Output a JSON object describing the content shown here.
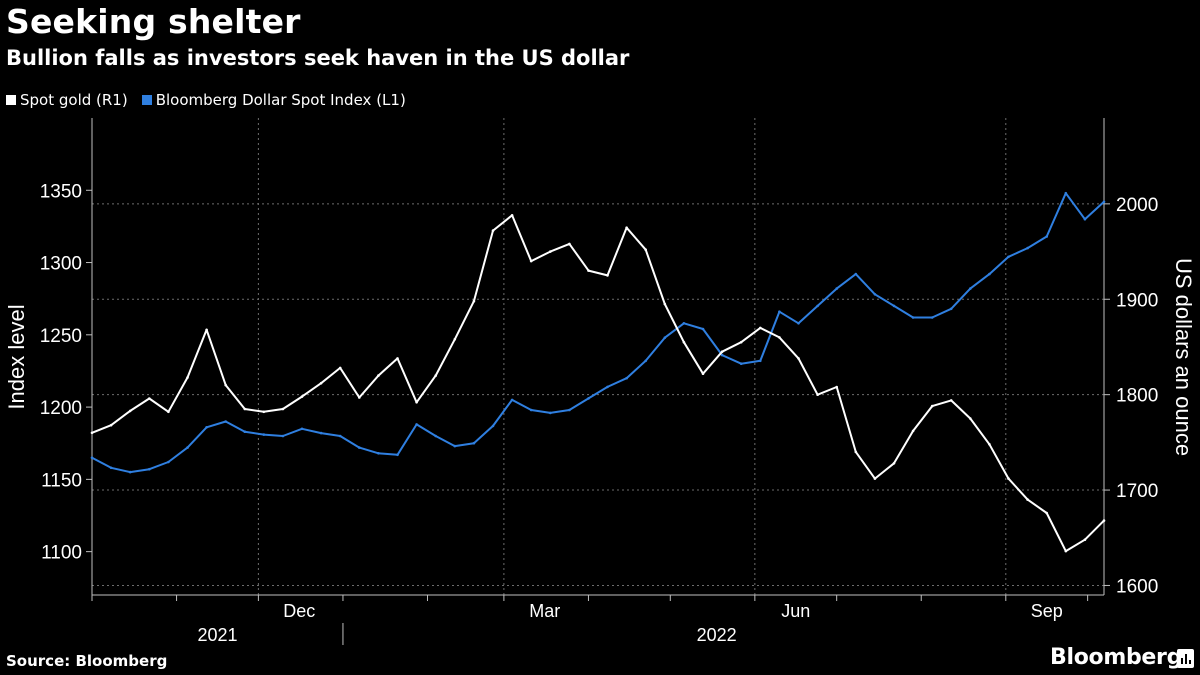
{
  "title": "Seeking shelter",
  "subtitle": "Bullion falls as investors seek haven in the US dollar",
  "legend": [
    {
      "label": "Spot gold (R1)",
      "color": "#ffffff"
    },
    {
      "label": "Bloomberg Dollar Spot Index (L1)",
      "color": "#2f7fe0"
    }
  ],
  "footer": {
    "source": "Source: Bloomberg",
    "brand": "Bloomberg"
  },
  "chart_data": {
    "type": "line",
    "ylabel_left": "Index level",
    "ylabel_right": "US dollars an ounce",
    "ylim_left": [
      1070,
      1400
    ],
    "ylim_right": [
      1590,
      2090
    ],
    "yticks_left": [
      1100,
      1150,
      1200,
      1250,
      1300,
      1350
    ],
    "yticks_right": [
      1600,
      1700,
      1800,
      1900,
      2000
    ],
    "x_month_labels": [
      "Dec",
      "Mar",
      "Jun",
      "Sep"
    ],
    "x_year_labels": [
      "2021",
      "2022"
    ],
    "grid": true,
    "legend_position": "top-left",
    "series": [
      {
        "name": "Bloomberg Dollar Spot Index (L1)",
        "axis": "left",
        "color": "#2f7fe0",
        "x": [
          "2021-10-01",
          "2021-10-08",
          "2021-10-15",
          "2021-10-22",
          "2021-10-29",
          "2021-11-05",
          "2021-11-12",
          "2021-11-19",
          "2021-11-26",
          "2021-12-03",
          "2021-12-10",
          "2021-12-17",
          "2021-12-24",
          "2021-12-31",
          "2022-01-07",
          "2022-01-14",
          "2022-01-21",
          "2022-01-28",
          "2022-02-04",
          "2022-02-11",
          "2022-02-18",
          "2022-02-25",
          "2022-03-04",
          "2022-03-11",
          "2022-03-18",
          "2022-03-25",
          "2022-04-01",
          "2022-04-08",
          "2022-04-15",
          "2022-04-22",
          "2022-04-29",
          "2022-05-06",
          "2022-05-13",
          "2022-05-20",
          "2022-05-27",
          "2022-06-03",
          "2022-06-10",
          "2022-06-17",
          "2022-06-24",
          "2022-07-01",
          "2022-07-08",
          "2022-07-15",
          "2022-07-22",
          "2022-07-29",
          "2022-08-05",
          "2022-08-12",
          "2022-08-19",
          "2022-08-26",
          "2022-09-02",
          "2022-09-09",
          "2022-09-16",
          "2022-09-23",
          "2022-09-30",
          "2022-10-07"
        ],
        "values": [
          1165,
          1158,
          1155,
          1157,
          1162,
          1172,
          1186,
          1190,
          1183,
          1181,
          1180,
          1185,
          1182,
          1180,
          1172,
          1168,
          1167,
          1188,
          1180,
          1173,
          1175,
          1187,
          1205,
          1198,
          1196,
          1198,
          1206,
          1214,
          1220,
          1232,
          1248,
          1258,
          1254,
          1236,
          1230,
          1232,
          1266,
          1258,
          1270,
          1282,
          1292,
          1278,
          1270,
          1262,
          1262,
          1268,
          1282,
          1292,
          1304,
          1310,
          1318,
          1348,
          1330,
          1342
        ]
      },
      {
        "name": "Spot gold (R1)",
        "axis": "right",
        "color": "#ffffff",
        "x": [
          "2021-10-01",
          "2021-10-08",
          "2021-10-15",
          "2021-10-22",
          "2021-10-29",
          "2021-11-05",
          "2021-11-12",
          "2021-11-19",
          "2021-11-26",
          "2021-12-03",
          "2021-12-10",
          "2021-12-17",
          "2021-12-24",
          "2021-12-31",
          "2022-01-07",
          "2022-01-14",
          "2022-01-21",
          "2022-01-28",
          "2022-02-04",
          "2022-02-11",
          "2022-02-18",
          "2022-02-25",
          "2022-03-04",
          "2022-03-11",
          "2022-03-18",
          "2022-03-25",
          "2022-04-01",
          "2022-04-08",
          "2022-04-15",
          "2022-04-22",
          "2022-04-29",
          "2022-05-06",
          "2022-05-13",
          "2022-05-20",
          "2022-05-27",
          "2022-06-03",
          "2022-06-10",
          "2022-06-17",
          "2022-06-24",
          "2022-07-01",
          "2022-07-08",
          "2022-07-15",
          "2022-07-22",
          "2022-07-29",
          "2022-08-05",
          "2022-08-12",
          "2022-08-19",
          "2022-08-26",
          "2022-09-02",
          "2022-09-09",
          "2022-09-16",
          "2022-09-23",
          "2022-09-30",
          "2022-10-07"
        ],
        "values": [
          1760,
          1768,
          1783,
          1796,
          1782,
          1818,
          1868,
          1810,
          1785,
          1782,
          1785,
          1798,
          1812,
          1828,
          1797,
          1820,
          1838,
          1792,
          1820,
          1858,
          1898,
          1972,
          1988,
          1940,
          1950,
          1958,
          1930,
          1925,
          1975,
          1952,
          1895,
          1855,
          1822,
          1845,
          1855,
          1870,
          1860,
          1838,
          1800,
          1808,
          1740,
          1712,
          1728,
          1762,
          1788,
          1794,
          1775,
          1748,
          1712,
          1690,
          1676,
          1636,
          1648,
          1668
        ]
      }
    ]
  }
}
